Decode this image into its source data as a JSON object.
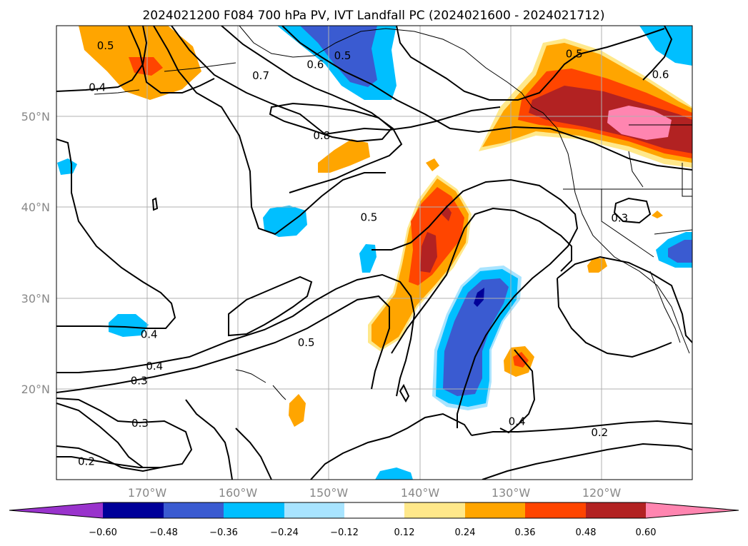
{
  "title": "2024021200 F084 700 hPa PV, IVT Landfall PC (2024021600 - 2024021712)",
  "colors": {
    "c_m060": "#9933cc",
    "c_m048": "#000099",
    "c_m036": "#3a5bd1",
    "c_m024": "#00bfff",
    "c_m012": "#a8e4ff",
    "c_0": "#ffffff",
    "c_p012": "#ffe88a",
    "c_p024": "#ffa500",
    "c_p036": "#ff4500",
    "c_p048": "#b22222",
    "c_p060": "#ff85b0"
  },
  "map": {
    "lon_range": [
      -180,
      -110
    ],
    "lat_range": [
      10,
      60
    ],
    "lat_labels": [
      "20°N",
      "30°N",
      "40°N",
      "50°N"
    ],
    "lon_labels": [
      "170°W",
      "160°W",
      "150°W",
      "140°W",
      "130°W",
      "120°W"
    ],
    "gridlines": true
  },
  "colorbar": {
    "orientation": "horizontal",
    "extend": "both",
    "ticks": [
      "−0.60",
      "−0.48",
      "−0.36",
      "−0.24",
      "−0.12",
      "0.12",
      "0.24",
      "0.36",
      "0.48",
      "0.60"
    ]
  },
  "contour_labels": [
    {
      "text": "0.5",
      "lon": -148.5,
      "lat": 56.7
    },
    {
      "text": "0.6",
      "lon": -151.5,
      "lat": 55.7
    },
    {
      "text": "0.7",
      "lon": -157.5,
      "lat": 54.5
    },
    {
      "text": "0.8",
      "lon": -150.8,
      "lat": 47.9
    },
    {
      "text": "0.5",
      "lon": -123.0,
      "lat": 56.9
    },
    {
      "text": "0.6",
      "lon": -113.5,
      "lat": 54.6
    },
    {
      "text": "0.5",
      "lon": -145.6,
      "lat": 38.9
    },
    {
      "text": "0.3",
      "lon": -118.0,
      "lat": 38.8
    },
    {
      "text": "0.4",
      "lon": -169.8,
      "lat": 26.0
    },
    {
      "text": "0.5",
      "lon": -152.5,
      "lat": 25.1
    },
    {
      "text": "0.4",
      "lon": -169.2,
      "lat": 22.5
    },
    {
      "text": "0.3",
      "lon": -170.9,
      "lat": 20.9
    },
    {
      "text": "0.3",
      "lon": -170.8,
      "lat": 16.2
    },
    {
      "text": "0.2",
      "lon": -176.7,
      "lat": 12.0
    },
    {
      "text": "0.4",
      "lon": -129.3,
      "lat": 16.4
    },
    {
      "text": "0.2",
      "lon": -120.2,
      "lat": 15.2
    },
    {
      "text": "0.4",
      "lon": -175.5,
      "lat": 53.2
    },
    {
      "text": "0.5",
      "lon": -174.6,
      "lat": 57.8
    }
  ]
}
